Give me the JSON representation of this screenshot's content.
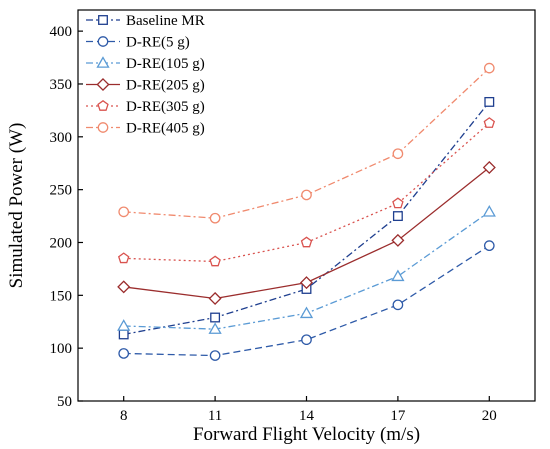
{
  "chart_data": {
    "type": "line",
    "title": "",
    "xlabel": "Forward Flight Velocity (m/s)",
    "ylabel": "Simulated Power (W)",
    "x": [
      8,
      11,
      14,
      17,
      20
    ],
    "x_ticks": [
      "8",
      "11",
      "14",
      "17",
      "20"
    ],
    "xlim": [
      6.5,
      21.5
    ],
    "ylim": [
      50,
      420
    ],
    "y_ticks": [
      "50",
      "100",
      "150",
      "200",
      "250",
      "300",
      "350",
      "400"
    ],
    "grid": false,
    "legend_position": "top-left",
    "series": [
      {
        "name": "Baseline MR",
        "color": "#1f3f8f",
        "marker": "square",
        "dash": "dash-dot",
        "values": [
          113,
          129,
          156,
          225,
          333
        ]
      },
      {
        "name": "D-RE(5 g)",
        "color": "#2e5aa8",
        "marker": "circle",
        "dash": "dash",
        "values": [
          95,
          93,
          108,
          141,
          197
        ]
      },
      {
        "name": "D-RE(105 g)",
        "color": "#5b9bd5",
        "marker": "triangle",
        "dash": "dash-dot",
        "values": [
          121,
          118,
          133,
          168,
          229
        ]
      },
      {
        "name": "D-RE(205 g)",
        "color": "#9b2d2d",
        "marker": "diamond",
        "dash": "solid",
        "values": [
          158,
          147,
          162,
          202,
          271
        ]
      },
      {
        "name": "D-RE(305 g)",
        "color": "#d9534f",
        "marker": "pentagon",
        "dash": "dot",
        "values": [
          185,
          182,
          200,
          237,
          313
        ]
      },
      {
        "name": "D-RE(405 g)",
        "color": "#f08a6e",
        "marker": "circle",
        "dash": "dash-dot",
        "values": [
          229,
          223,
          245,
          284,
          365
        ]
      }
    ]
  }
}
